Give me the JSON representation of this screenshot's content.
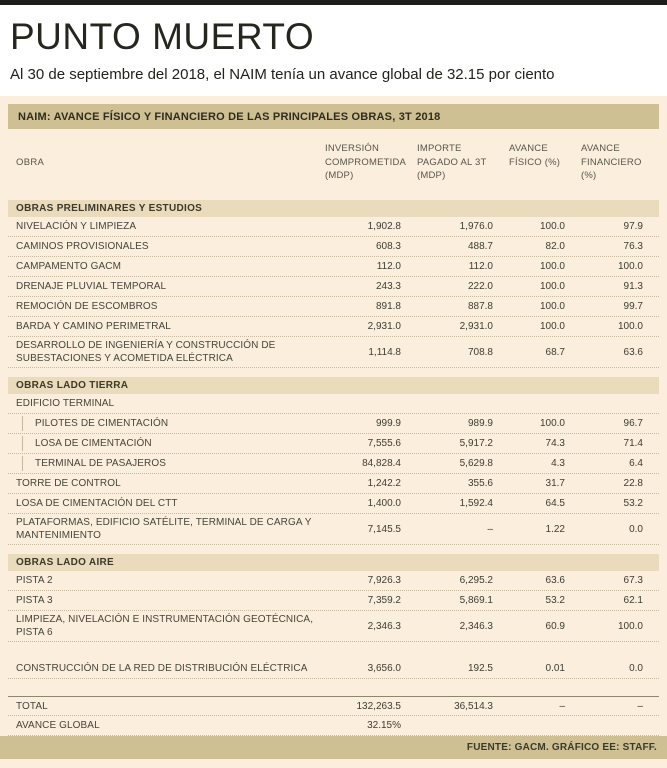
{
  "page": {
    "title": "PUNTO MUERTO",
    "subtitle": "Al 30 de septiembre del 2018, el NAIM tenía un avance global de 32.15 por ciento",
    "source": "FUENTE: GACM. GRÁFICO EE: STAFF."
  },
  "colors": {
    "background": "#fbeedd",
    "band": "#cec093",
    "section_background": "#ebdbbd",
    "text": "#3d3d32"
  },
  "chart_data": {
    "type": "table",
    "title": "NAIM: AVANCE FÍSICO Y FINANCIERO DE LAS PRINCIPALES OBRAS, 3T 2018",
    "obra_header": "OBRA",
    "columns": [
      "INVERSIÓN COMPROMETIDA (MDP)",
      "IMPORTE PAGADO AL 3T (MDP)",
      "AVANCE FÍSICO (%)",
      "AVANCE FINANCIERO (%)"
    ],
    "rows": [
      {
        "type": "section",
        "label": "OBRAS PRELIMINARES Y ESTUDIOS"
      },
      {
        "type": "row",
        "label": "NIVELACIÓN Y LIMPIEZA",
        "values": [
          "1,902.8",
          "1,976.0",
          "100.0",
          "97.9"
        ]
      },
      {
        "type": "row",
        "label": "CAMINOS PROVISIONALES",
        "values": [
          "608.3",
          "488.7",
          "82.0",
          "76.3"
        ]
      },
      {
        "type": "row",
        "label": "CAMPAMENTO GACM",
        "values": [
          "112.0",
          "112.0",
          "100.0",
          "100.0"
        ]
      },
      {
        "type": "row",
        "label": "DRENAJE PLUVIAL TEMPORAL",
        "values": [
          "243.3",
          "222.0",
          "100.0",
          "91.3"
        ]
      },
      {
        "type": "row",
        "label": "REMOCIÓN DE ESCOMBROS",
        "values": [
          "891.8",
          "887.8",
          "100.0",
          "99.7"
        ]
      },
      {
        "type": "row",
        "label": "BARDA Y CAMINO PERIMETRAL",
        "values": [
          "2,931.0",
          "2,931.0",
          "100.0",
          "100.0"
        ]
      },
      {
        "type": "row",
        "label": "DESARROLLO DE INGENIERÍA Y CONSTRUCCIÓN DE SUBESTACIONES Y ACOMETIDA ELÉCTRICA",
        "values": [
          "1,114.8",
          "708.8",
          "68.7",
          "63.6"
        ]
      },
      {
        "type": "section",
        "label": "OBRAS LADO TIERRA"
      },
      {
        "type": "row",
        "label": "EDIFICIO TERMINAL",
        "values": [
          "",
          "",
          "",
          ""
        ]
      },
      {
        "type": "row",
        "indent": true,
        "label": "PILOTES DE CIMENTACIÓN",
        "values": [
          "999.9",
          "989.9",
          "100.0",
          "96.7"
        ]
      },
      {
        "type": "row",
        "indent": true,
        "label": "LOSA DE CIMENTACIÓN",
        "values": [
          "7,555.6",
          "5,917.2",
          "74.3",
          "71.4"
        ]
      },
      {
        "type": "row",
        "indent": true,
        "label": "TERMINAL DE PASAJEROS",
        "values": [
          "84,828.4",
          "5,629.8",
          "4.3",
          "6.4"
        ]
      },
      {
        "type": "row",
        "label": "TORRE DE CONTROL",
        "values": [
          "1,242.2",
          "355.6",
          "31.7",
          "22.8"
        ]
      },
      {
        "type": "row",
        "label": "LOSA DE CIMENTACIÓN DEL CTT",
        "values": [
          "1,400.0",
          "1,592.4",
          "64.5",
          "53.2"
        ]
      },
      {
        "type": "row",
        "label": "PLATAFORMAS, EDIFICIO SATÉLITE, TERMINAL DE CARGA Y MANTENIMIENTO",
        "values": [
          "7,145.5",
          "–",
          "1.22",
          "0.0"
        ]
      },
      {
        "type": "section",
        "label": "OBRAS LADO AIRE"
      },
      {
        "type": "row",
        "label": "PISTA 2",
        "values": [
          "7,926.3",
          "6,295.2",
          "63.6",
          "67.3"
        ]
      },
      {
        "type": "row",
        "label": "PISTA 3",
        "values": [
          "7,359.2",
          "5,869.1",
          "53.2",
          "62.1"
        ]
      },
      {
        "type": "row",
        "label": "LIMPIEZA, NIVELACIÓN E INSTRUMENTACIÓN GEOTÉCNICA, PISTA 6",
        "values": [
          "2,346.3",
          "2,346.3",
          "60.9",
          "100.0"
        ]
      },
      {
        "type": "spacer"
      },
      {
        "type": "row",
        "label": "CONSTRUCCIÓN DE LA RED DE DISTRIBUCIÓN ELÉCTRICA",
        "values": [
          "3,656.0",
          "192.5",
          "0.01",
          "0.0"
        ]
      },
      {
        "type": "spacer"
      },
      {
        "type": "total",
        "label": "TOTAL",
        "values": [
          "132,263.5",
          "36,514.3",
          "–",
          "–"
        ]
      },
      {
        "type": "total",
        "label": "AVANCE GLOBAL",
        "values": [
          "32.15%",
          "",
          "",
          ""
        ]
      }
    ]
  }
}
